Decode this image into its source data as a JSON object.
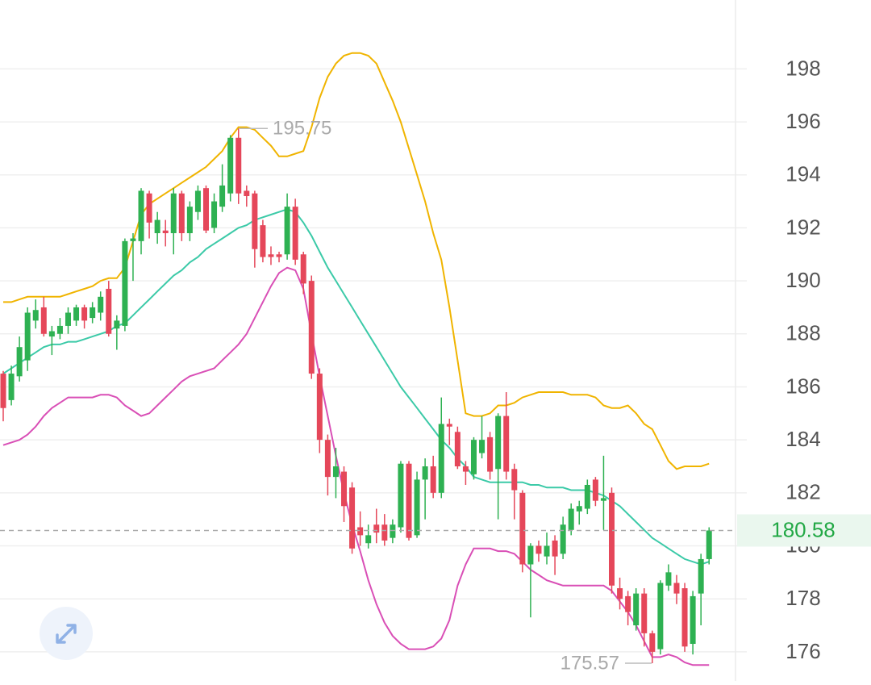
{
  "chart_data": {
    "type": "candlestick",
    "up_color": "#2eb152",
    "down_color": "#e5475a",
    "open": [
      186.5,
      185.5,
      186.4,
      187.0,
      188.5,
      189.0,
      187.9,
      188.0,
      188.3,
      188.5,
      189.0,
      188.6,
      188.8,
      189.7,
      188.2,
      188.3,
      191.5,
      191.5,
      193.3,
      191.8,
      191.9,
      191.8,
      193.3,
      191.8,
      192.6,
      193.5,
      192.0,
      192.8,
      193.3,
      195.4,
      193.4,
      193.3,
      192.1,
      191.0,
      191.0,
      191.0,
      192.8,
      191.0,
      190.0,
      186.5,
      184.0,
      182.6,
      182.8,
      182.2,
      180.7,
      180.1,
      180.8,
      180.8,
      180.3,
      180.7,
      183.1,
      180.4,
      182.5,
      183.0,
      182.0,
      184.6,
      184.3,
      183.0,
      182.7,
      183.5,
      184.1,
      182.9,
      184.9,
      182.9,
      182.0,
      179.3,
      180.0,
      179.6,
      180.2,
      179.7,
      180.6,
      181.3,
      181.4,
      182.5,
      181.7,
      182.0,
      178.4,
      178.1,
      177.0,
      178.2,
      176.7,
      176.1,
      178.5,
      178.6,
      178.4,
      176.3,
      178.2,
      179.5
    ],
    "high": [
      186.6,
      186.8,
      187.9,
      189.0,
      189.3,
      189.4,
      188.3,
      188.6,
      189.0,
      189.1,
      189.1,
      189.2,
      189.6,
      190.0,
      188.7,
      191.6,
      191.8,
      193.5,
      193.4,
      192.6,
      192.3,
      193.5,
      193.4,
      193.0,
      193.6,
      193.6,
      193.3,
      194.4,
      195.5,
      195.75,
      193.6,
      193.4,
      192.3,
      191.3,
      191.1,
      193.3,
      193.1,
      191.1,
      190.2,
      186.7,
      184.2,
      183.7,
      183.0,
      182.4,
      181.3,
      180.8,
      181.4,
      181.2,
      181.0,
      183.2,
      183.2,
      182.8,
      183.3,
      183.4,
      185.6,
      184.8,
      184.5,
      183.2,
      184.1,
      184.9,
      184.3,
      185.0,
      185.8,
      183.1,
      182.1,
      180.1,
      180.2,
      180.5,
      180.4,
      181.1,
      181.6,
      181.7,
      182.5,
      182.6,
      183.4,
      182.2,
      178.8,
      178.3,
      178.4,
      178.4,
      176.8,
      178.7,
      179.3,
      178.9,
      178.6,
      178.3,
      179.7,
      180.7
    ],
    "low": [
      184.7,
      185.3,
      186.2,
      186.6,
      188.2,
      187.9,
      187.2,
      187.8,
      188.0,
      188.3,
      188.2,
      188.4,
      188.5,
      187.9,
      187.4,
      188.1,
      190.0,
      191.0,
      191.6,
      191.4,
      191.3,
      191.0,
      191.5,
      191.5,
      192.3,
      191.8,
      191.8,
      192.6,
      193.0,
      192.9,
      192.8,
      190.5,
      190.7,
      190.6,
      190.7,
      190.8,
      190.6,
      189.5,
      186.3,
      183.5,
      181.9,
      181.8,
      180.9,
      179.7,
      180.0,
      179.9,
      180.1,
      180.0,
      180.1,
      180.5,
      180.2,
      180.3,
      181.0,
      181.8,
      181.8,
      183.8,
      182.9,
      182.3,
      182.5,
      183.3,
      182.5,
      181.0,
      182.5,
      181.0,
      179.0,
      177.3,
      179.4,
      179.3,
      178.9,
      179.5,
      180.4,
      180.8,
      181.2,
      181.5,
      180.6,
      178.2,
      177.6,
      177.0,
      176.8,
      176.2,
      175.57,
      175.9,
      178.3,
      177.8,
      176.0,
      175.9,
      177.0,
      179.3
    ],
    "close": [
      185.2,
      186.5,
      187.5,
      188.8,
      188.9,
      188.0,
      188.1,
      188.3,
      188.8,
      189.0,
      188.5,
      189.0,
      189.4,
      188.0,
      188.5,
      191.5,
      191.6,
      193.4,
      192.2,
      192.3,
      191.8,
      193.3,
      191.8,
      192.8,
      193.4,
      191.9,
      193.0,
      193.6,
      195.4,
      193.3,
      193.2,
      191.2,
      190.9,
      190.9,
      190.9,
      192.8,
      190.8,
      189.9,
      186.5,
      184.0,
      182.6,
      183.0,
      181.5,
      179.9,
      180.4,
      180.4,
      180.5,
      180.2,
      180.8,
      183.1,
      180.3,
      182.5,
      183.0,
      182.0,
      184.6,
      184.5,
      183.0,
      182.8,
      184.0,
      184.0,
      182.8,
      184.9,
      182.8,
      182.1,
      179.3,
      180.0,
      179.7,
      180.0,
      179.6,
      180.8,
      181.4,
      181.5,
      182.3,
      181.7,
      181.8,
      178.5,
      178.0,
      177.5,
      178.2,
      176.7,
      176.0,
      178.6,
      179.0,
      178.2,
      176.2,
      178.1,
      179.5,
      180.58
    ],
    "bands": [
      {
        "color": "#f0b400",
        "values": [
          189.2,
          189.2,
          189.3,
          189.4,
          189.4,
          189.4,
          189.4,
          189.4,
          189.5,
          189.6,
          189.7,
          189.8,
          190.0,
          190.1,
          190.1,
          190.5,
          191.5,
          192.5,
          192.9,
          193.1,
          193.3,
          193.5,
          193.7,
          193.9,
          194.1,
          194.3,
          194.6,
          194.9,
          195.4,
          195.8,
          195.8,
          195.7,
          195.4,
          195.1,
          194.7,
          194.7,
          194.8,
          194.9,
          195.8,
          196.9,
          197.7,
          198.2,
          198.5,
          198.6,
          198.6,
          198.5,
          198.2,
          197.5,
          196.8,
          196.0,
          195.0,
          194.0,
          193.0,
          191.8,
          190.8,
          189.0,
          187.0,
          185.0,
          184.9,
          184.9,
          185.0,
          185.3,
          185.3,
          185.4,
          185.6,
          185.7,
          185.8,
          185.8,
          185.8,
          185.8,
          185.7,
          185.7,
          185.7,
          185.6,
          185.3,
          185.2,
          185.2,
          185.3,
          185.0,
          184.6,
          184.4,
          183.8,
          183.2,
          182.9,
          183.0,
          183.0,
          183.0,
          183.1
        ]
      },
      {
        "color": "#3ccaa8",
        "values": [
          186.5,
          186.7,
          186.9,
          187.1,
          187.3,
          187.5,
          187.6,
          187.6,
          187.7,
          187.7,
          187.8,
          187.9,
          188.0,
          188.1,
          188.3,
          188.4,
          188.7,
          189.0,
          189.3,
          189.6,
          189.9,
          190.2,
          190.4,
          190.7,
          190.9,
          191.2,
          191.4,
          191.6,
          191.8,
          192.0,
          192.1,
          192.3,
          192.4,
          192.5,
          192.6,
          192.7,
          192.6,
          192.2,
          191.7,
          191.1,
          190.5,
          190.0,
          189.5,
          189.0,
          188.5,
          188.0,
          187.5,
          187.0,
          186.5,
          186.0,
          185.6,
          185.2,
          184.8,
          184.4,
          184.0,
          183.7,
          183.3,
          183.0,
          182.6,
          182.5,
          182.4,
          182.4,
          182.4,
          182.4,
          182.4,
          182.3,
          182.3,
          182.2,
          182.2,
          182.2,
          182.1,
          182.1,
          182.1,
          182.0,
          181.9,
          181.7,
          181.5,
          181.2,
          180.9,
          180.6,
          180.3,
          180.1,
          179.9,
          179.7,
          179.5,
          179.4,
          179.3,
          179.4
        ]
      },
      {
        "color": "#d94fb6",
        "values": [
          183.8,
          183.9,
          184.0,
          184.2,
          184.5,
          184.9,
          185.2,
          185.4,
          185.6,
          185.6,
          185.6,
          185.6,
          185.7,
          185.7,
          185.6,
          185.3,
          185.1,
          184.9,
          185.0,
          185.3,
          185.6,
          185.9,
          186.2,
          186.4,
          186.5,
          186.6,
          186.7,
          187.0,
          187.3,
          187.6,
          188.0,
          188.6,
          189.2,
          189.8,
          190.3,
          190.5,
          190.4,
          189.7,
          188.0,
          186.4,
          184.9,
          183.4,
          182.0,
          180.8,
          179.8,
          178.7,
          177.8,
          177.1,
          176.6,
          176.3,
          176.1,
          176.1,
          176.1,
          176.2,
          176.5,
          177.2,
          178.5,
          179.3,
          179.9,
          179.9,
          179.9,
          179.8,
          179.8,
          179.7,
          179.4,
          179.1,
          178.9,
          178.7,
          178.6,
          178.5,
          178.5,
          178.5,
          178.5,
          178.5,
          178.5,
          178.3,
          177.9,
          177.5,
          177.0,
          176.4,
          175.8,
          175.8,
          175.9,
          175.8,
          175.6,
          175.5,
          175.5,
          175.5
        ]
      }
    ],
    "ylim": [
      174.9,
      200.6
    ],
    "yticks": [
      176,
      178,
      180,
      182,
      184,
      186,
      188,
      190,
      192,
      194,
      196,
      198
    ],
    "grid": true,
    "max_label": 195.75,
    "min_label": 175.57,
    "last_price": 180.58,
    "last_price_color": "#22a845"
  }
}
